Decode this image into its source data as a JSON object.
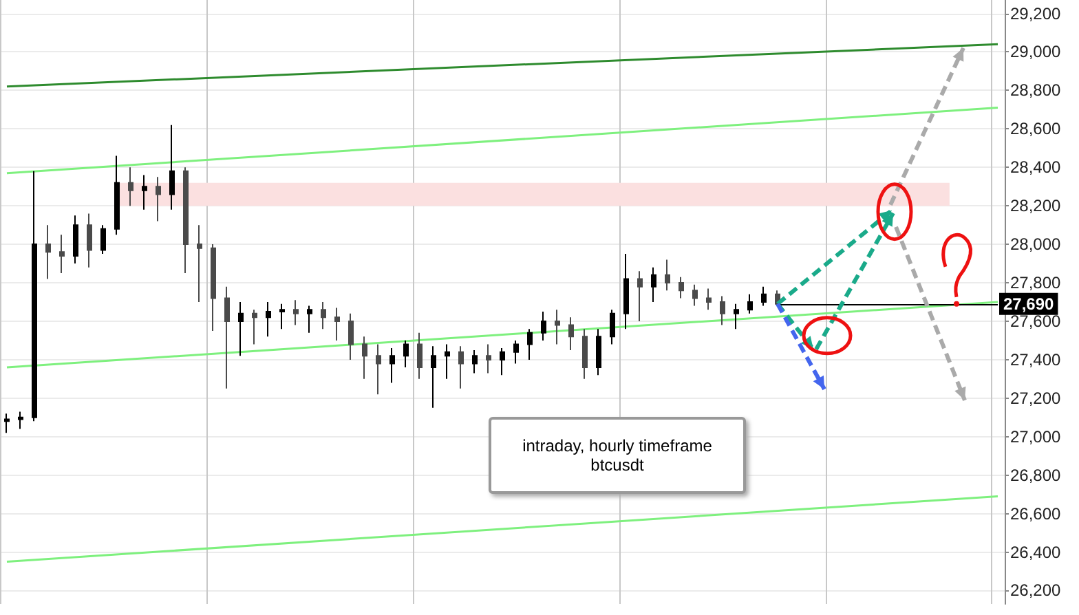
{
  "chart_data": {
    "type": "candlestick",
    "categories": [
      null,
      null,
      null,
      null,
      null,
      null,
      null,
      null,
      null,
      null,
      null,
      null,
      null,
      null,
      null,
      null,
      null,
      null,
      null,
      null,
      null,
      null,
      null,
      null,
      null,
      null,
      null,
      null,
      null,
      null,
      null,
      null,
      null,
      null,
      null,
      null,
      null,
      null,
      null,
      null,
      null,
      null,
      null,
      null,
      null,
      null,
      null,
      null,
      null,
      null,
      null,
      null,
      null,
      null,
      null,
      null,
      null,
      null,
      null,
      null,
      null,
      null,
      null,
      null,
      null,
      null,
      null,
      null,
      null,
      null,
      null,
      null,
      null
    ],
    "ohlc": [
      [
        27080,
        27120,
        27020,
        27090
      ],
      [
        27090,
        27130,
        27040,
        27100
      ],
      [
        27100,
        28380,
        27080,
        28000
      ],
      [
        28000,
        28100,
        27820,
        27960
      ],
      [
        27960,
        28050,
        27850,
        27940
      ],
      [
        27940,
        28150,
        27900,
        28100
      ],
      [
        28100,
        28160,
        27880,
        27970
      ],
      [
        27970,
        28100,
        27950,
        28080
      ],
      [
        28080,
        28460,
        28050,
        28320
      ],
      [
        28320,
        28400,
        28200,
        28280
      ],
      [
        28280,
        28360,
        28180,
        28300
      ],
      [
        28300,
        28350,
        28120,
        28260
      ],
      [
        28260,
        28620,
        28180,
        28380
      ],
      [
        28380,
        28400,
        27850,
        28000
      ],
      [
        28000,
        28100,
        27700,
        27980
      ],
      [
        27980,
        28000,
        27550,
        27720
      ],
      [
        27720,
        27780,
        27250,
        27600
      ],
      [
        27600,
        27700,
        27420,
        27640
      ],
      [
        27640,
        27660,
        27480,
        27620
      ],
      [
        27620,
        27700,
        27520,
        27650
      ],
      [
        27650,
        27690,
        27560,
        27660
      ],
      [
        27660,
        27710,
        27580,
        27640
      ],
      [
        27640,
        27680,
        27540,
        27660
      ],
      [
        27660,
        27700,
        27560,
        27620
      ],
      [
        27620,
        27670,
        27500,
        27600
      ],
      [
        27600,
        27640,
        27400,
        27480
      ],
      [
        27480,
        27520,
        27300,
        27420
      ],
      [
        27420,
        27480,
        27220,
        27380
      ],
      [
        27380,
        27460,
        27280,
        27420
      ],
      [
        27420,
        27500,
        27360,
        27480
      ],
      [
        27480,
        27540,
        27300,
        27360
      ],
      [
        27360,
        27470,
        27150,
        27420
      ],
      [
        27420,
        27480,
        27300,
        27440
      ],
      [
        27440,
        27470,
        27250,
        27380
      ],
      [
        27380,
        27450,
        27330,
        27420
      ],
      [
        27420,
        27480,
        27330,
        27400
      ],
      [
        27400,
        27460,
        27320,
        27440
      ],
      [
        27440,
        27500,
        27380,
        27480
      ],
      [
        27480,
        27560,
        27400,
        27540
      ],
      [
        27540,
        27650,
        27500,
        27600
      ],
      [
        27600,
        27660,
        27480,
        27580
      ],
      [
        27580,
        27620,
        27450,
        27520
      ],
      [
        27520,
        27560,
        27300,
        27360
      ],
      [
        27360,
        27560,
        27320,
        27520
      ],
      [
        27520,
        27660,
        27480,
        27640
      ],
      [
        27640,
        27950,
        27560,
        27820
      ],
      [
        27820,
        27860,
        27600,
        27780
      ],
      [
        27780,
        27880,
        27700,
        27840
      ],
      [
        27840,
        27920,
        27760,
        27800
      ],
      [
        27800,
        27830,
        27720,
        27760
      ],
      [
        27760,
        27790,
        27680,
        27720
      ],
      [
        27720,
        27770,
        27660,
        27700
      ],
      [
        27700,
        27730,
        27580,
        27640
      ],
      [
        27640,
        27690,
        27560,
        27660
      ],
      [
        27660,
        27740,
        27640,
        27700
      ],
      [
        27700,
        27780,
        27680,
        27740
      ],
      [
        27740,
        27760,
        27680,
        27690
      ],
      null,
      null,
      null,
      null,
      null,
      null,
      null,
      null,
      null,
      null,
      null,
      null,
      null,
      null,
      null,
      null
    ],
    "colors": [
      "#000000",
      "#000000",
      "#000000",
      "#4a4a4a",
      "#4a4a4a",
      "#000000",
      "#4a4a4a",
      "#000000",
      "#000000",
      "#4a4a4a",
      "#000000",
      "#4a4a4a",
      "#000000",
      "#4a4a4a",
      "#4a4a4a",
      "#4a4a4a",
      "#4a4a4a",
      "#000000",
      "#4a4a4a",
      "#000000",
      "#000000",
      "#4a4a4a",
      "#000000",
      "#4a4a4a",
      "#4a4a4a",
      "#4a4a4a",
      "#4a4a4a",
      "#4a4a4a",
      "#000000",
      "#000000",
      "#4a4a4a",
      "#000000",
      "#000000",
      "#4a4a4a",
      "#000000",
      "#4a4a4a",
      "#000000",
      "#000000",
      "#000000",
      "#000000",
      "#4a4a4a",
      "#4a4a4a",
      "#4a4a4a",
      "#000000",
      "#000000",
      "#000000",
      "#4a4a4a",
      "#000000",
      "#4a4a4a",
      "#4a4a4a",
      "#4a4a4a",
      "#4a4a4a",
      "#4a4a4a",
      "#000000",
      "#000000",
      "#000000",
      "#4a4a4a",
      null,
      null,
      null,
      null,
      null,
      null,
      null,
      null,
      null,
      null,
      null,
      null,
      null,
      null,
      null,
      null
    ],
    "series": [
      {
        "type": "line",
        "color": "#2e8b2e",
        "values": [
          28820,
          null,
          null,
          null,
          null,
          null,
          null,
          null,
          null,
          null,
          null,
          null,
          null,
          null,
          null,
          null,
          null,
          null,
          null,
          null,
          null,
          null,
          null,
          null,
          null,
          null,
          null,
          null,
          null,
          null,
          null,
          null,
          null,
          null,
          null,
          null,
          null,
          null,
          null,
          null,
          null,
          null,
          null,
          null,
          null,
          null,
          null,
          null,
          null,
          null,
          null,
          null,
          null,
          null,
          null,
          null,
          null,
          null,
          null,
          null,
          null,
          null,
          null,
          null,
          null,
          null,
          null,
          null,
          null,
          null,
          null,
          null,
          29040
        ]
      },
      {
        "type": "line",
        "color": "#7ef07e",
        "values": [
          28370,
          null,
          null,
          null,
          null,
          null,
          null,
          null,
          null,
          null,
          null,
          null,
          null,
          null,
          null,
          null,
          null,
          null,
          null,
          null,
          null,
          null,
          null,
          null,
          null,
          null,
          null,
          null,
          null,
          null,
          null,
          null,
          null,
          null,
          null,
          null,
          null,
          null,
          null,
          null,
          null,
          null,
          null,
          null,
          null,
          null,
          null,
          null,
          null,
          null,
          null,
          null,
          null,
          null,
          null,
          null,
          null,
          null,
          null,
          null,
          null,
          null,
          null,
          null,
          null,
          null,
          null,
          null,
          null,
          null,
          null,
          null,
          28710
        ]
      },
      {
        "type": "line",
        "color": "#7ef07e",
        "values": [
          27360,
          null,
          null,
          null,
          null,
          null,
          null,
          null,
          null,
          null,
          null,
          null,
          null,
          null,
          null,
          null,
          null,
          null,
          null,
          null,
          null,
          null,
          null,
          null,
          null,
          null,
          null,
          null,
          null,
          null,
          null,
          null,
          null,
          null,
          null,
          null,
          null,
          null,
          null,
          null,
          null,
          null,
          null,
          null,
          null,
          null,
          null,
          null,
          null,
          null,
          null,
          null,
          null,
          null,
          null,
          null,
          null,
          null,
          null,
          null,
          null,
          null,
          null,
          null,
          null,
          null,
          null,
          null,
          null,
          null,
          null,
          null,
          27700
        ]
      },
      {
        "type": "line",
        "color": "#7ef07e",
        "values": [
          26350,
          null,
          null,
          null,
          null,
          null,
          null,
          null,
          null,
          null,
          null,
          null,
          null,
          null,
          null,
          null,
          null,
          null,
          null,
          null,
          null,
          null,
          null,
          null,
          null,
          null,
          null,
          null,
          null,
          null,
          null,
          null,
          null,
          null,
          null,
          null,
          null,
          null,
          null,
          null,
          null,
          null,
          null,
          null,
          null,
          null,
          null,
          null,
          null,
          null,
          null,
          null,
          null,
          null,
          null,
          null,
          null,
          null,
          null,
          null,
          null,
          null,
          null,
          null,
          null,
          null,
          null,
          null,
          null,
          null,
          null,
          null,
          26690
        ]
      }
    ],
    "bands": [
      {
        "axis": "y",
        "from": 28200,
        "to": 28320,
        "color": "#fbe0e0"
      }
    ],
    "ref_lines": [
      {
        "axis": "y",
        "value": 27690,
        "label": "27,690",
        "color": "#000000"
      }
    ],
    "annotations": [
      "intraday, hourly timeframe",
      "btcusdt"
    ],
    "ylim": [
      26130,
      29270
    ],
    "yticks": [
      {
        "value": 26200,
        "label": "26,200"
      },
      {
        "value": 26400,
        "label": "26,400"
      },
      {
        "value": 26600,
        "label": "26,600"
      },
      {
        "value": 26800,
        "label": "26,800"
      },
      {
        "value": 27000,
        "label": "27,000"
      },
      {
        "value": 27200,
        "label": "27,200"
      },
      {
        "value": 27400,
        "label": "27,400"
      },
      {
        "value": 27600,
        "label": "27,600"
      },
      {
        "value": 27800,
        "label": "27,800"
      },
      {
        "value": 28000,
        "label": "28,000"
      },
      {
        "value": 28200,
        "label": "28,200"
      },
      {
        "value": 28400,
        "label": "28,400"
      },
      {
        "value": 28600,
        "label": "28,600"
      },
      {
        "value": 28800,
        "label": "28,800"
      },
      {
        "value": 29000,
        "label": "29,000"
      },
      {
        "value": 29200,
        "label": "29,200"
      }
    ],
    "grid": true,
    "marker": "none"
  }
}
